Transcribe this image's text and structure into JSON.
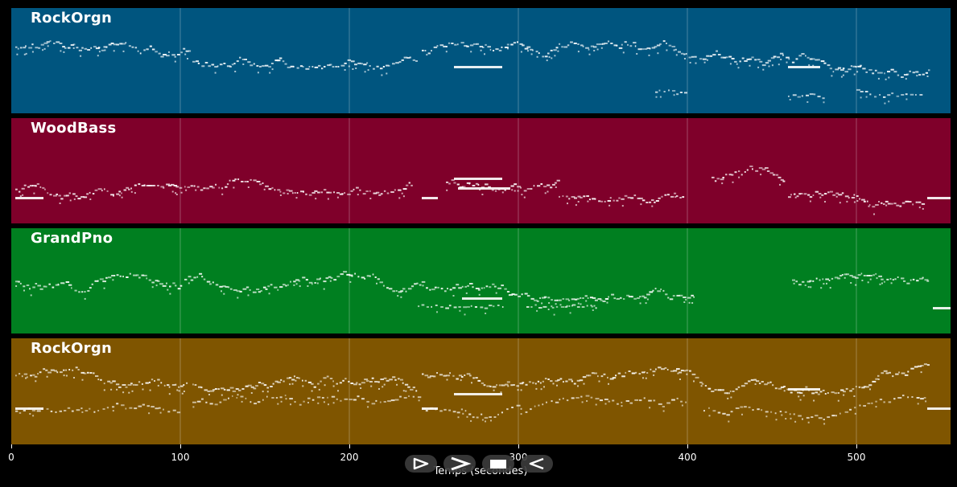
{
  "axis": {
    "xlabel": "Temps (secondes)",
    "ticks": [
      "0",
      "100",
      "200",
      "300",
      "400",
      "500"
    ],
    "tick_values": [
      0,
      100,
      200,
      300,
      400,
      500
    ],
    "xlim": [
      0,
      555
    ]
  },
  "tracks": [
    {
      "label": "RockOrgn",
      "color": "#00557f"
    },
    {
      "label": "WoodBass",
      "color": "#7f002a"
    },
    {
      "label": "GrandPno",
      "color": "#007f20"
    },
    {
      "label": "RockOrgn",
      "color": "#7f5500"
    }
  ],
  "transport": [
    {
      "name": "play-icon"
    },
    {
      "name": "fast-forward-icon"
    },
    {
      "name": "stop-icon"
    },
    {
      "name": "rewind-icon"
    }
  ]
}
